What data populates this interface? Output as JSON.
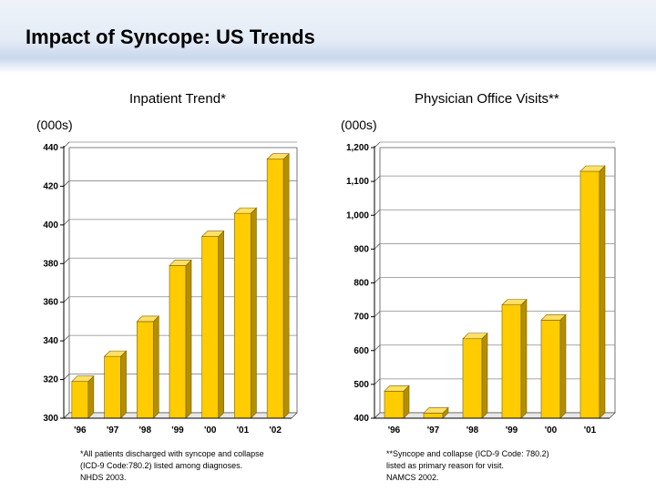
{
  "page": {
    "title": "Impact of Syncope: US Trends"
  },
  "colors": {
    "bar_front": "#ffcc00",
    "bar_side": "#b38f00",
    "bar_top": "#ffe066"
  },
  "chart_data": [
    {
      "type": "bar",
      "title": "Inpatient Trend*",
      "units": "(000s)",
      "categories": [
        "'96",
        "'97",
        "'98",
        "'99",
        "'00",
        "'01",
        "'02"
      ],
      "values": [
        319,
        332,
        350,
        379,
        394,
        406,
        434
      ],
      "ylim": [
        300,
        440
      ],
      "yticks": [
        300,
        320,
        340,
        360,
        380,
        400,
        420,
        440
      ],
      "ytick_labels": [
        "300",
        "320",
        "340",
        "360",
        "380",
        "400",
        "420",
        "440"
      ],
      "note": [
        "*All patients discharged with syncope and collapse",
        "(ICD-9 Code:780.2) listed among diagnoses.",
        "NHDS 2003."
      ]
    },
    {
      "type": "bar",
      "title": "Physician Office Visits**",
      "units": "(000s)",
      "categories": [
        "'96",
        "'97",
        "'98",
        "'99",
        "'00",
        "'01"
      ],
      "values": [
        480,
        415,
        635,
        735,
        690,
        1130
      ],
      "ylim": [
        400,
        1200
      ],
      "yticks": [
        400,
        500,
        600,
        700,
        800,
        900,
        1000,
        1100,
        1200
      ],
      "ytick_labels": [
        "400",
        "500",
        "600",
        "700",
        "800",
        "900",
        "1,000",
        "1,100",
        "1,200"
      ],
      "note": [
        "**Syncope and collapse (ICD-9 Code: 780.2)",
        "listed as primary reason for visit.",
        "NAMCS 2002."
      ]
    }
  ]
}
